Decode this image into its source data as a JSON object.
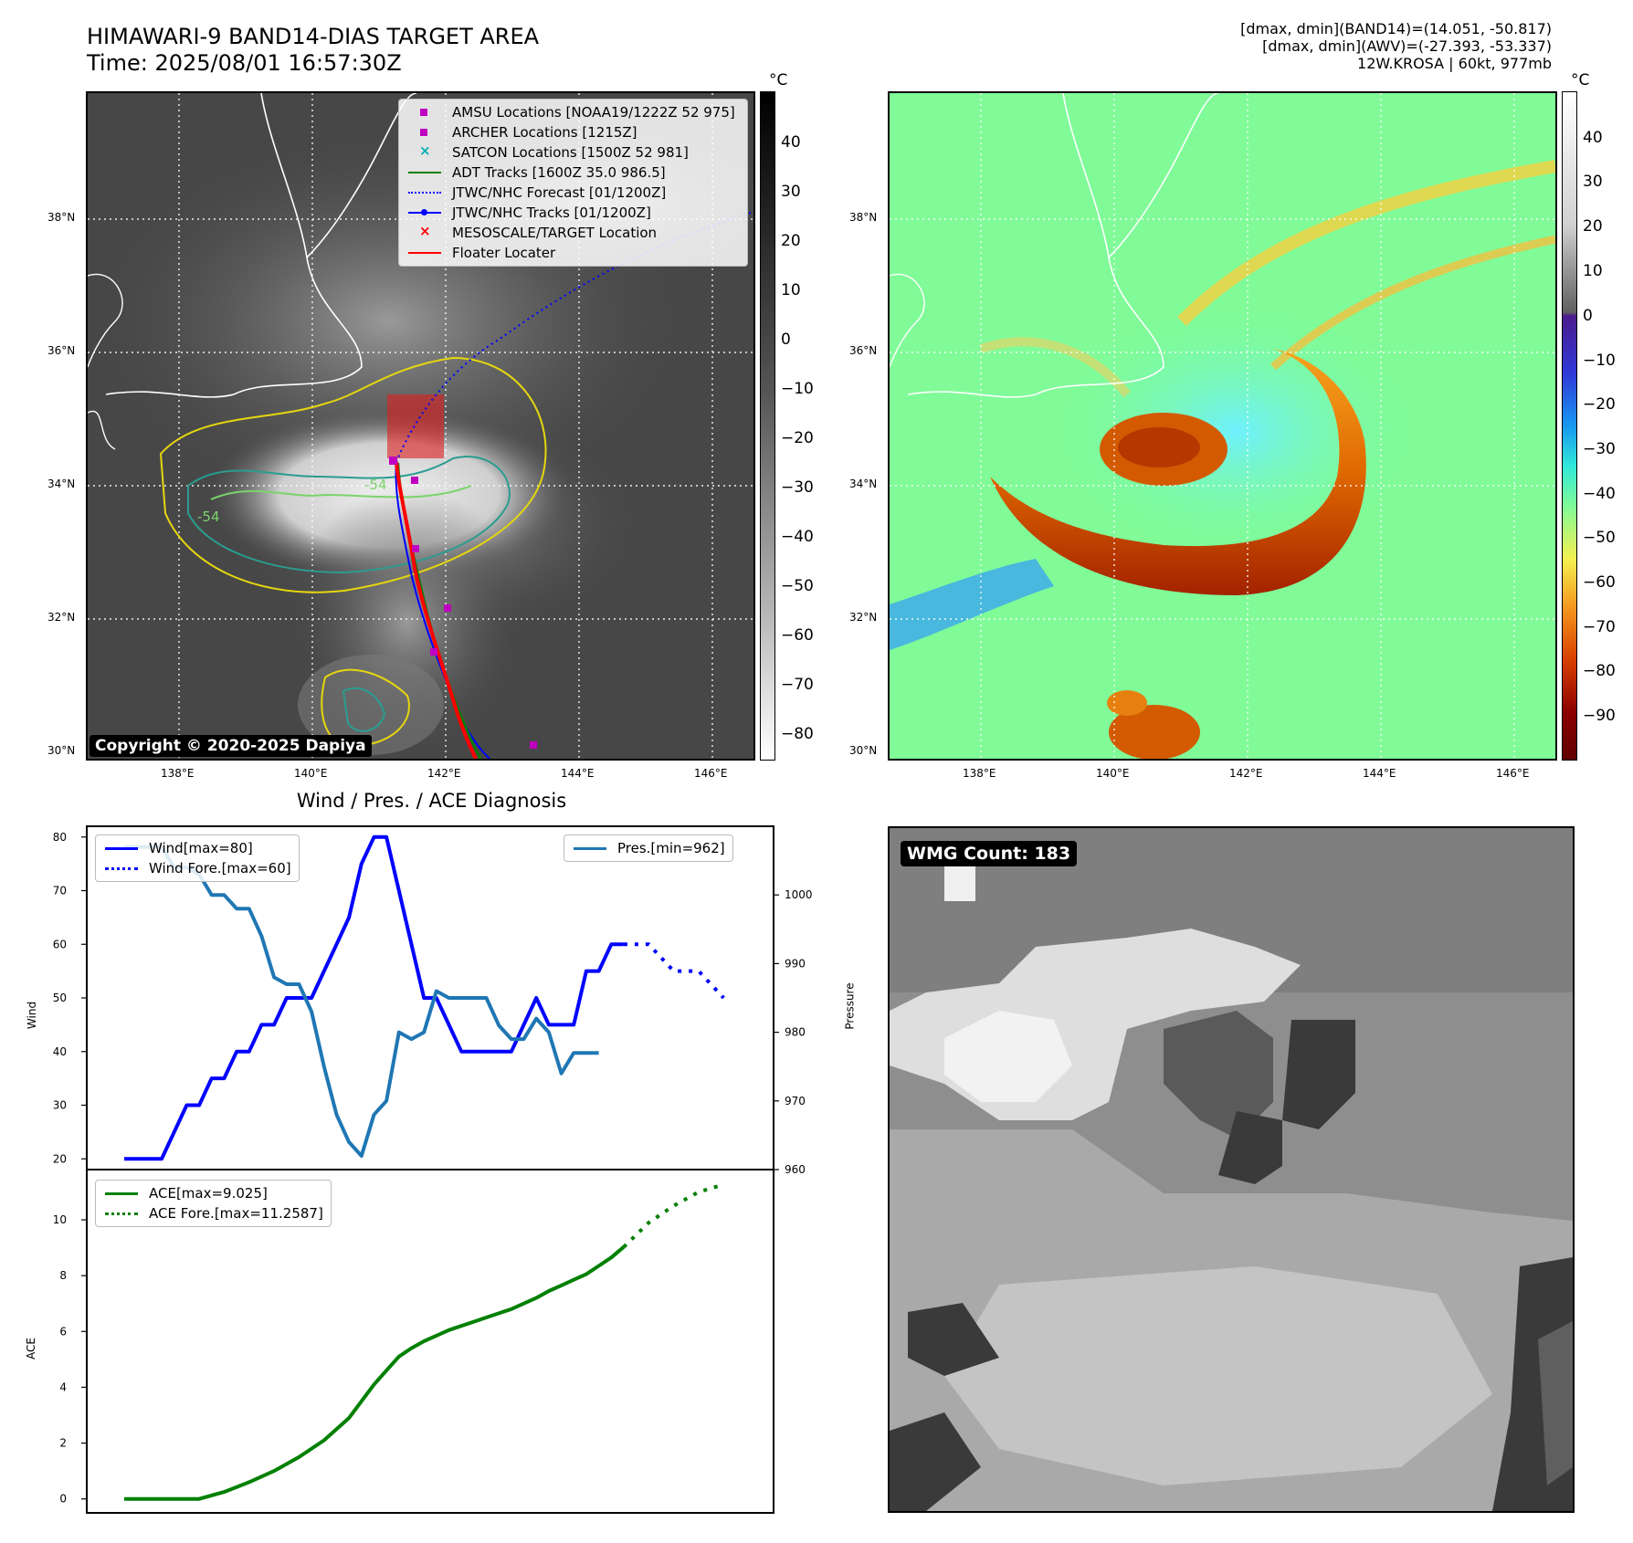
{
  "header": {
    "title_line1": "HIMAWARI-9 BAND14-DIAS TARGET AREA",
    "title_line2": "Time: 2025/08/01 16:57:30Z",
    "meta_line1": "[dmax, dmin](BAND14)=(14.051, -50.817)",
    "meta_line2": "[dmax, dmin](AWV)=(-27.393, -53.337)",
    "meta_line3": "12W.KROSA | 60kt, 977mb"
  },
  "map_left": {
    "lat_labels": [
      "38°N",
      "36°N",
      "34°N",
      "32°N",
      "30°N"
    ],
    "lon_labels": [
      "138°E",
      "140°E",
      "142°E",
      "144°E",
      "146°E"
    ],
    "copyright": "Copyright © 2020-2025 Dapiya",
    "contour_labels": [
      "-54",
      "-54"
    ],
    "legend": [
      {
        "label": "AMSU Locations [NOAA19/1222Z 52 975]",
        "color": "#c000c0",
        "marker": "square"
      },
      {
        "label": "ARCHER Locations [1215Z]",
        "color": "#c000c0",
        "marker": "square"
      },
      {
        "label": "SATCON Locations [1500Z 52 981]",
        "color": "#00b0b0",
        "marker": "x"
      },
      {
        "label": "ADT Tracks [1600Z 35.0 986.5]",
        "color": "#008000",
        "marker": "line"
      },
      {
        "label": "JTWC/NHC Forecast [01/1200Z]",
        "color": "#0000ff",
        "marker": "dotted"
      },
      {
        "label": "JTWC/NHC Tracks [01/1200Z]",
        "color": "#0000ff",
        "marker": "line-dot"
      },
      {
        "label": "MESOSCALE/TARGET Location",
        "color": "#ff0000",
        "marker": "x"
      },
      {
        "label": "Floater Locater",
        "color": "#ff0000",
        "marker": "line"
      }
    ],
    "colorbar": {
      "unit": "°C",
      "ticks": [
        "40",
        "30",
        "20",
        "10",
        "0",
        "−10",
        "−20",
        "−30",
        "−40",
        "−50",
        "−60",
        "−70",
        "−80"
      ]
    }
  },
  "map_right": {
    "lat_labels": [
      "38°N",
      "36°N",
      "34°N",
      "32°N",
      "30°N"
    ],
    "lon_labels": [
      "138°E",
      "140°E",
      "142°E",
      "144°E",
      "146°E"
    ],
    "colorbar": {
      "unit": "°C",
      "ticks": [
        "40",
        "30",
        "20",
        "10",
        "0",
        "−10",
        "−20",
        "−30",
        "−40",
        "−50",
        "−60",
        "−70",
        "−80",
        "−90"
      ]
    }
  },
  "wmg": {
    "count_label": "WMG Count: 183"
  },
  "chart_data": [
    {
      "type": "line",
      "title": "Wind / Pres. / ACE Diagnosis",
      "ylabel": "Wind",
      "ylabel_right": "Pressure",
      "ylim": [
        18,
        82
      ],
      "ylim_right": [
        960,
        1010
      ],
      "yticks": [
        20,
        30,
        40,
        50,
        60,
        70,
        80
      ],
      "yticks_right": [
        960,
        970,
        980,
        990,
        1000
      ],
      "series": [
        {
          "name": "Wind[max=80]",
          "color": "#0000ff",
          "style": "solid",
          "axis": "left",
          "x": [
            0,
            3,
            5,
            6,
            7,
            8,
            9,
            10,
            11,
            12,
            13,
            14,
            15,
            16,
            17,
            18,
            19,
            20,
            21,
            22,
            23,
            24,
            25,
            26,
            27,
            28,
            29,
            30,
            31,
            32,
            33,
            34,
            35,
            36,
            37,
            38,
            39,
            40
          ],
          "values": [
            20,
            20,
            30,
            30,
            35,
            35,
            40,
            40,
            45,
            45,
            50,
            50,
            50,
            55,
            60,
            65,
            75,
            80,
            80,
            70,
            60,
            50,
            50,
            45,
            40,
            40,
            40,
            40,
            40,
            45,
            50,
            45,
            45,
            45,
            55,
            55,
            60,
            60
          ]
        },
        {
          "name": "Wind Fore.[max=60]",
          "color": "#0000ff",
          "style": "dotted",
          "axis": "left",
          "x": [
            40,
            42,
            44,
            46,
            48
          ],
          "values": [
            60,
            60,
            55,
            55,
            50
          ]
        },
        {
          "name": "Pres.[min=962]",
          "color": "#1f77b4",
          "style": "solid",
          "axis": "right",
          "x": [
            0,
            3,
            4,
            5,
            6,
            7,
            8,
            9,
            10,
            11,
            12,
            13,
            14,
            15,
            16,
            17,
            18,
            19,
            20,
            21,
            22,
            23,
            24,
            25,
            26,
            27,
            28,
            29,
            30,
            31,
            32,
            33,
            34,
            35,
            36,
            37,
            38
          ],
          "values": [
            1007,
            1007,
            1004,
            1004,
            1003,
            1000,
            1000,
            998,
            998,
            994,
            988,
            987,
            987,
            983,
            975,
            968,
            964,
            962,
            968,
            970,
            980,
            979,
            980,
            986,
            985,
            985,
            985,
            985,
            981,
            979,
            979,
            982,
            980,
            974,
            977,
            977,
            977
          ]
        }
      ]
    },
    {
      "type": "line",
      "ylabel": "ACE",
      "ylim": [
        -0.5,
        11.8
      ],
      "yticks": [
        0,
        2,
        4,
        6,
        8,
        10
      ],
      "series": [
        {
          "name": "ACE[max=9.025]",
          "color": "#008000",
          "style": "solid",
          "x": [
            0,
            6,
            8,
            10,
            12,
            14,
            16,
            18,
            20,
            21,
            22,
            23,
            24,
            25,
            26,
            27,
            28,
            29,
            30,
            31,
            32,
            33,
            34,
            35,
            36,
            37,
            38,
            39,
            40
          ],
          "values": [
            0,
            0,
            0.25,
            0.6,
            1.0,
            1.5,
            2.1,
            2.9,
            4.1,
            4.6,
            5.1,
            5.4,
            5.65,
            5.85,
            6.05,
            6.2,
            6.35,
            6.5,
            6.65,
            6.8,
            7.0,
            7.2,
            7.45,
            7.65,
            7.85,
            8.05,
            8.35,
            8.65,
            9.025
          ]
        },
        {
          "name": "ACE Fore.[max=11.2587]",
          "color": "#008000",
          "style": "dotted",
          "x": [
            40,
            42,
            44,
            46,
            48
          ],
          "values": [
            9.025,
            9.9,
            10.5,
            11.0,
            11.2587
          ]
        }
      ]
    }
  ]
}
